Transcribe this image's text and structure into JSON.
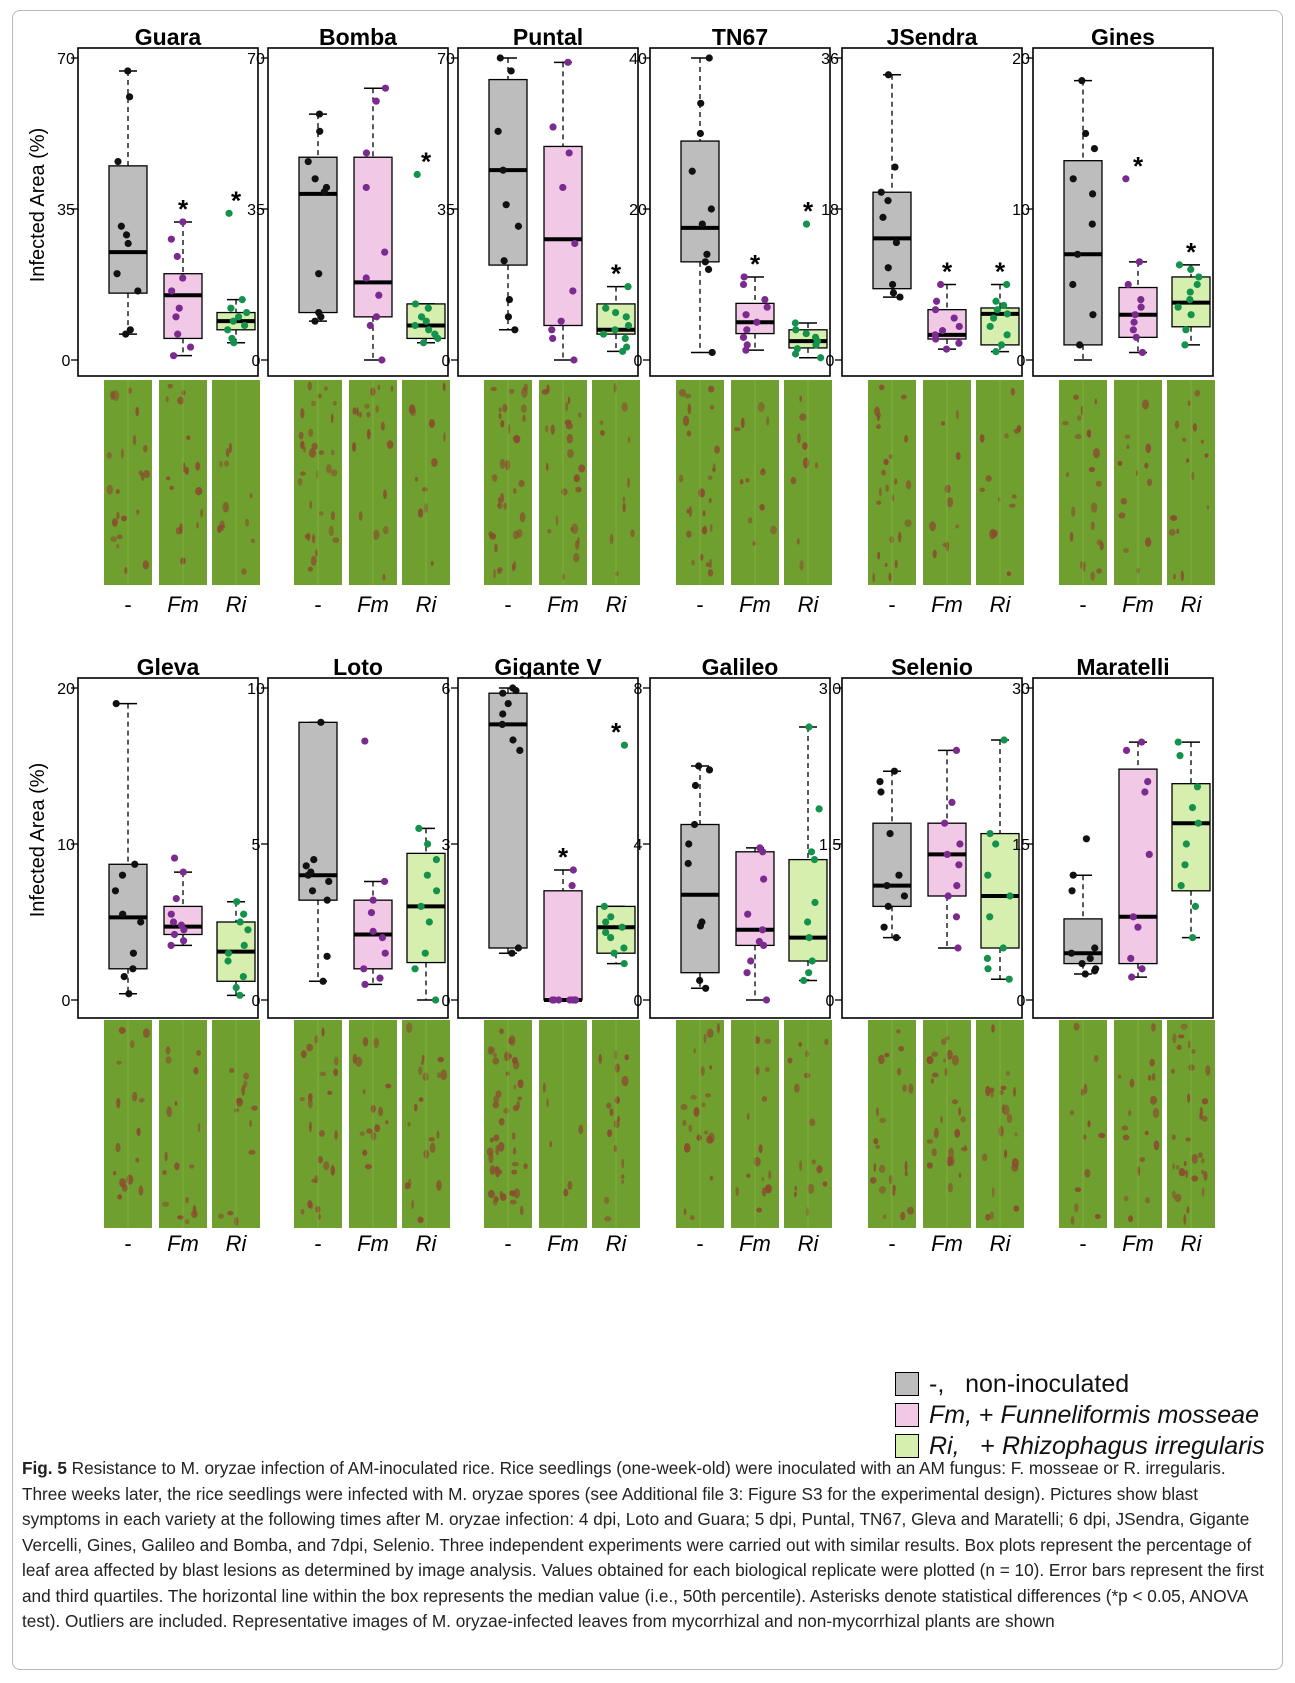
{
  "y_axis_label": "Infected Area (%)",
  "group_labels": [
    "-",
    "Fm",
    "Ri"
  ],
  "colors": {
    "non_inoculated": "#bdbdbd",
    "fm": "#f1c9e6",
    "ri": "#d6efaf",
    "dot_ni": "#111111",
    "dot_fm": "#7b2a8f",
    "dot_ri": "#12924a",
    "leaf": "#6f9f2e",
    "lesion": "#8a4b2f"
  },
  "chart_data": [
    {
      "type": "box",
      "title": "Guara",
      "ylim": [
        0,
        70
      ],
      "yticks": [
        0,
        35,
        70
      ],
      "groups": [
        {
          "name": "-",
          "q1": 15.5,
          "median": 25,
          "q3": 45,
          "min": 6,
          "max": 67,
          "sig": false,
          "points": [
            67,
            61,
            46,
            31,
            29,
            27,
            20,
            16,
            7,
            6
          ]
        },
        {
          "name": "Fm",
          "q1": 5,
          "median": 15,
          "q3": 20,
          "min": 1,
          "max": 32,
          "sig": true,
          "points": [
            32,
            28,
            24,
            19,
            16,
            12,
            10,
            6,
            3,
            1
          ]
        },
        {
          "name": "Ri",
          "q1": 7,
          "median": 9,
          "q3": 11,
          "min": 4,
          "max": 14,
          "sig": true,
          "points": [
            34,
            14,
            12,
            11,
            10,
            9,
            8,
            7,
            5,
            4
          ]
        }
      ]
    },
    {
      "type": "box",
      "title": "Bomba",
      "ylim": [
        0,
        70
      ],
      "yticks": [
        0,
        35,
        70
      ],
      "groups": [
        {
          "name": "-",
          "q1": 11,
          "median": 38.5,
          "q3": 47,
          "min": 9,
          "max": 57,
          "sig": false,
          "points": [
            57,
            53,
            46,
            42,
            40,
            39,
            20,
            11,
            10,
            9
          ]
        },
        {
          "name": "Fm",
          "q1": 10,
          "median": 18,
          "q3": 47,
          "min": 0,
          "max": 63,
          "sig": false,
          "points": [
            63,
            60,
            48,
            40,
            25,
            19,
            15,
            10,
            8,
            0
          ]
        },
        {
          "name": "Ri",
          "q1": 5,
          "median": 8,
          "q3": 13,
          "min": 4,
          "max": 13,
          "sig": true,
          "points": [
            43,
            13,
            12,
            10,
            9,
            8,
            7,
            6,
            5,
            4
          ]
        }
      ]
    },
    {
      "type": "box",
      "title": "Puntal",
      "ylim": [
        0,
        70
      ],
      "yticks": [
        0,
        35,
        70
      ],
      "groups": [
        {
          "name": "-",
          "q1": 22,
          "median": 44,
          "q3": 65,
          "min": 7,
          "max": 70,
          "sig": false,
          "points": [
            70,
            67,
            53,
            44,
            36,
            31,
            14,
            10,
            7,
            23
          ]
        },
        {
          "name": "Fm",
          "q1": 8,
          "median": 28,
          "q3": 49.5,
          "min": 0,
          "max": 69,
          "sig": false,
          "points": [
            69,
            54,
            48,
            40,
            27,
            16,
            9,
            7,
            5,
            0
          ]
        },
        {
          "name": "Ri",
          "q1": 6,
          "median": 7,
          "q3": 13,
          "min": 2,
          "max": 17,
          "sig": true,
          "points": [
            17,
            12,
            11,
            10,
            8,
            7,
            6,
            5,
            3,
            2
          ]
        }
      ]
    },
    {
      "type": "box",
      "title": "TN67",
      "ylim": [
        0,
        40
      ],
      "yticks": [
        0,
        20,
        40
      ],
      "groups": [
        {
          "name": "-",
          "q1": 13,
          "median": 17.5,
          "q3": 29,
          "min": 1,
          "max": 40,
          "sig": false,
          "points": [
            40,
            34,
            30,
            25,
            20,
            18,
            14,
            13,
            12,
            1
          ]
        },
        {
          "name": "Fm",
          "q1": 3.5,
          "median": 5,
          "q3": 7.5,
          "min": 1.3,
          "max": 11,
          "sig": true,
          "points": [
            11,
            10,
            8,
            7,
            6,
            5,
            4,
            3,
            2,
            1.3
          ]
        },
        {
          "name": "Ri",
          "q1": 1.6,
          "median": 2.5,
          "q3": 4,
          "min": 0.3,
          "max": 4.9,
          "sig": true,
          "points": [
            18,
            4.9,
            4,
            3.5,
            3,
            2.5,
            2,
            1.5,
            0.8,
            0.3
          ]
        }
      ]
    },
    {
      "type": "box",
      "title": "JSendra",
      "ylim": [
        0,
        36
      ],
      "yticks": [
        0,
        18,
        36
      ],
      "groups": [
        {
          "name": "-",
          "q1": 8.5,
          "median": 14.5,
          "q3": 20,
          "min": 7.5,
          "max": 34,
          "sig": false,
          "points": [
            34,
            23,
            20,
            19,
            17,
            14,
            11,
            9,
            8,
            7.5
          ]
        },
        {
          "name": "Fm",
          "q1": 2.5,
          "median": 3,
          "q3": 6,
          "min": 1.3,
          "max": 9,
          "sig": true,
          "points": [
            9,
            7,
            6,
            5,
            4,
            3.5,
            3,
            2.5,
            2,
            1.3
          ]
        },
        {
          "name": "Ri",
          "q1": 1.8,
          "median": 5.5,
          "q3": 6.2,
          "min": 1,
          "max": 9,
          "sig": true,
          "points": [
            9,
            7,
            6.5,
            6,
            5.5,
            5,
            4,
            3,
            1.8,
            1
          ]
        }
      ]
    },
    {
      "type": "box",
      "title": "Gines",
      "ylim": [
        0,
        20
      ],
      "yticks": [
        0,
        10,
        20
      ],
      "groups": [
        {
          "name": "-",
          "q1": 1,
          "median": 7,
          "q3": 13.2,
          "min": 0,
          "max": 18.5,
          "sig": false,
          "points": [
            18.5,
            15,
            14,
            12,
            11,
            9,
            7,
            5,
            3,
            1
          ]
        },
        {
          "name": "Fm",
          "q1": 1.5,
          "median": 3,
          "q3": 4.8,
          "min": 0.5,
          "max": 6.5,
          "sig": true,
          "points": [
            12,
            6.5,
            5,
            4,
            3.5,
            3,
            2.5,
            2,
            1.5,
            0.5
          ]
        },
        {
          "name": "Ri",
          "q1": 2.2,
          "median": 3.8,
          "q3": 5.5,
          "min": 1,
          "max": 6.3,
          "sig": true,
          "points": [
            6.3,
            6,
            5.5,
            5,
            4.5,
            4,
            3.5,
            3,
            2,
            1
          ]
        }
      ]
    },
    {
      "type": "box",
      "title": "Gleva",
      "ylim": [
        0,
        20
      ],
      "yticks": [
        0,
        10,
        20
      ],
      "groups": [
        {
          "name": "-",
          "q1": 2,
          "median": 5.3,
          "q3": 8.7,
          "min": 0.4,
          "max": 19,
          "sig": false,
          "points": [
            19,
            8.7,
            8,
            7,
            5.5,
            5,
            3,
            2,
            1.5,
            0.4
          ]
        },
        {
          "name": "Fm",
          "q1": 4.2,
          "median": 4.7,
          "q3": 6,
          "min": 3.5,
          "max": 8.2,
          "sig": false,
          "points": [
            9.1,
            8.2,
            6.5,
            5.5,
            5,
            4.8,
            4.5,
            4.2,
            3.8,
            3.5
          ]
        },
        {
          "name": "Ri",
          "q1": 1.2,
          "median": 3.1,
          "q3": 5,
          "min": 0.3,
          "max": 6.3,
          "sig": false,
          "points": [
            6.3,
            5.5,
            5,
            4.5,
            3.5,
            3,
            2.5,
            1.5,
            0.8,
            0.3
          ]
        }
      ]
    },
    {
      "type": "box",
      "title": "Loto",
      "ylim": [
        0,
        10
      ],
      "yticks": [
        0,
        5,
        10
      ],
      "groups": [
        {
          "name": "-",
          "q1": 3.2,
          "median": 4,
          "q3": 8.9,
          "min": 0.6,
          "max": 8.9,
          "sig": false,
          "points": [
            8.9,
            4.5,
            4.3,
            4,
            3.8,
            3.5,
            3.2,
            1.4,
            0.6,
            4.1
          ]
        },
        {
          "name": "Fm",
          "q1": 1,
          "median": 2.1,
          "q3": 3.2,
          "min": 0.5,
          "max": 3.8,
          "sig": false,
          "points": [
            8.3,
            3.8,
            3.2,
            2.8,
            2.2,
            2,
            1.5,
            1,
            0.7,
            0.5
          ]
        },
        {
          "name": "Ri",
          "q1": 1.2,
          "median": 3,
          "q3": 4.7,
          "min": 0,
          "max": 5.5,
          "sig": false,
          "points": [
            5.5,
            5,
            4.5,
            4,
            3.5,
            3,
            2.5,
            1.5,
            1,
            0
          ]
        }
      ]
    },
    {
      "type": "box",
      "title": "Gigante V",
      "ylim": [
        0,
        6
      ],
      "yticks": [
        0,
        3,
        6
      ],
      "groups": [
        {
          "name": "-",
          "q1": 1,
          "median": 5.3,
          "q3": 5.9,
          "min": 0.9,
          "max": 6,
          "sig": false,
          "points": [
            6,
            5.95,
            5.9,
            5.7,
            5.5,
            5.3,
            5,
            4.8,
            1,
            0.9
          ]
        },
        {
          "name": "Fm",
          "q1": 0,
          "median": 0,
          "q3": 2.1,
          "min": 0,
          "max": 2.5,
          "sig": true,
          "points": [
            2.5,
            2.2,
            0,
            0,
            0,
            0,
            0,
            0,
            0,
            0
          ]
        },
        {
          "name": "Ri",
          "q1": 0.9,
          "median": 1.4,
          "q3": 1.8,
          "min": 0.7,
          "max": 1.8,
          "sig": true,
          "points": [
            4.9,
            1.8,
            1.6,
            1.5,
            1.4,
            1.3,
            1.2,
            1,
            0.9,
            0.7
          ]
        }
      ]
    },
    {
      "type": "box",
      "title": "Galileo",
      "ylim": [
        0,
        8
      ],
      "yticks": [
        0,
        4,
        8
      ],
      "groups": [
        {
          "name": "-",
          "q1": 0.7,
          "median": 2.7,
          "q3": 4.5,
          "min": 0.3,
          "max": 6,
          "sig": false,
          "points": [
            6,
            5.9,
            5.5,
            4.5,
            4,
            3.5,
            2,
            1.9,
            0.5,
            0.3
          ]
        },
        {
          "name": "Fm",
          "q1": 1.4,
          "median": 1.8,
          "q3": 3.8,
          "min": 0,
          "max": 3.9,
          "sig": false,
          "points": [
            3.9,
            3.8,
            3.1,
            2.2,
            1.8,
            1.5,
            1.4,
            1,
            0.7,
            0
          ]
        },
        {
          "name": "Ri",
          "q1": 1,
          "median": 1.6,
          "q3": 3.6,
          "min": 0.5,
          "max": 7,
          "sig": false,
          "points": [
            7,
            4.9,
            3.8,
            3.6,
            2.5,
            2,
            1.6,
            1,
            0.7,
            0.5
          ]
        }
      ]
    },
    {
      "type": "box",
      "title": "Selenio",
      "ylim": [
        0,
        3
      ],
      "yticks": [
        "0",
        "1.5",
        "3.0"
      ],
      "groups": [
        {
          "name": "-",
          "q1": 0.9,
          "median": 1.1,
          "q3": 1.7,
          "min": 0.6,
          "max": 2.2,
          "sig": false,
          "points": [
            2.2,
            2.1,
            2,
            1.6,
            1.2,
            1.1,
            1,
            0.9,
            0.7,
            0.6
          ]
        },
        {
          "name": "Fm",
          "q1": 1,
          "median": 1.4,
          "q3": 1.7,
          "min": 0.5,
          "max": 2.4,
          "sig": false,
          "points": [
            2.4,
            1.9,
            1.7,
            1.5,
            1.4,
            1.3,
            1.1,
            1,
            0.8,
            0.5
          ]
        },
        {
          "name": "Ri",
          "q1": 0.5,
          "median": 1,
          "q3": 1.6,
          "min": 0.2,
          "max": 2.5,
          "sig": false,
          "points": [
            2.5,
            1.6,
            1.5,
            1.2,
            1,
            0.8,
            0.5,
            0.4,
            0.3,
            0.2
          ]
        }
      ]
    },
    {
      "type": "box",
      "title": "Maratelli",
      "ylim": [
        0,
        30
      ],
      "yticks": [
        0,
        15,
        30
      ],
      "groups": [
        {
          "name": "-",
          "q1": 3.5,
          "median": 4.5,
          "q3": 7.8,
          "min": 2.5,
          "max": 12,
          "sig": false,
          "points": [
            15.5,
            12,
            10.5,
            5,
            4.5,
            4,
            3.5,
            3,
            2.8,
            2.5
          ]
        },
        {
          "name": "Fm",
          "q1": 3.5,
          "median": 8,
          "q3": 22.2,
          "min": 2.2,
          "max": 24.8,
          "sig": false,
          "points": [
            24.8,
            24,
            21,
            20,
            14,
            8,
            7,
            4,
            3,
            2.2
          ]
        },
        {
          "name": "Ri",
          "q1": 10.5,
          "median": 17,
          "q3": 20.8,
          "min": 6,
          "max": 24.8,
          "sig": false,
          "points": [
            24.8,
            23.5,
            20.5,
            18.5,
            17,
            15,
            13,
            11,
            9,
            6
          ]
        }
      ]
    }
  ],
  "legend": [
    {
      "key": "-,",
      "desc": "   non-inoculated",
      "italic": false,
      "color": "#bdbdbd"
    },
    {
      "key": "Fm,",
      "desc": " + ",
      "species": "Funneliformis mosseae",
      "color": "#f1c9e6"
    },
    {
      "key": "Ri,",
      "desc": "   + ",
      "species": "Rhizophagus irregularis",
      "color": "#d6efaf"
    }
  ],
  "caption": {
    "label": "Fig. 5",
    "text": "Resistance to M. oryzae infection of AM-inoculated rice. Rice seedlings (one-week-old) were inoculated with an AM fungus: F. mosseae or R. irregularis. Three weeks later, the rice seedlings were infected with M. oryzae spores (see Additional file 3: Figure S3 for the experimental design). Pictures show blast symptoms in each variety at the following times after M. oryzae infection: 4 dpi, Loto and Guara; 5 dpi, Puntal, TN67, Gleva and Maratelli; 6 dpi, JSendra, Gigante Vercelli, Gines, Galileo and Bomba, and 7dpi, Selenio. Three independent experiments were carried out with similar results. Box plots represent the percentage of leaf area affected by blast lesions as determined by image analysis. Values obtained for each biological replicate were plotted (n = 10). Error bars represent the first and third quartiles. The horizontal line within the box represents the median value (i.e., 50th percentile). Asterisks denote statistical differences (*p < 0.05, ANOVA test). Outliers are included. Representative images of M. oryzae-infected leaves from mycorrhizal and non-mycorrhizal plants are shown"
  }
}
